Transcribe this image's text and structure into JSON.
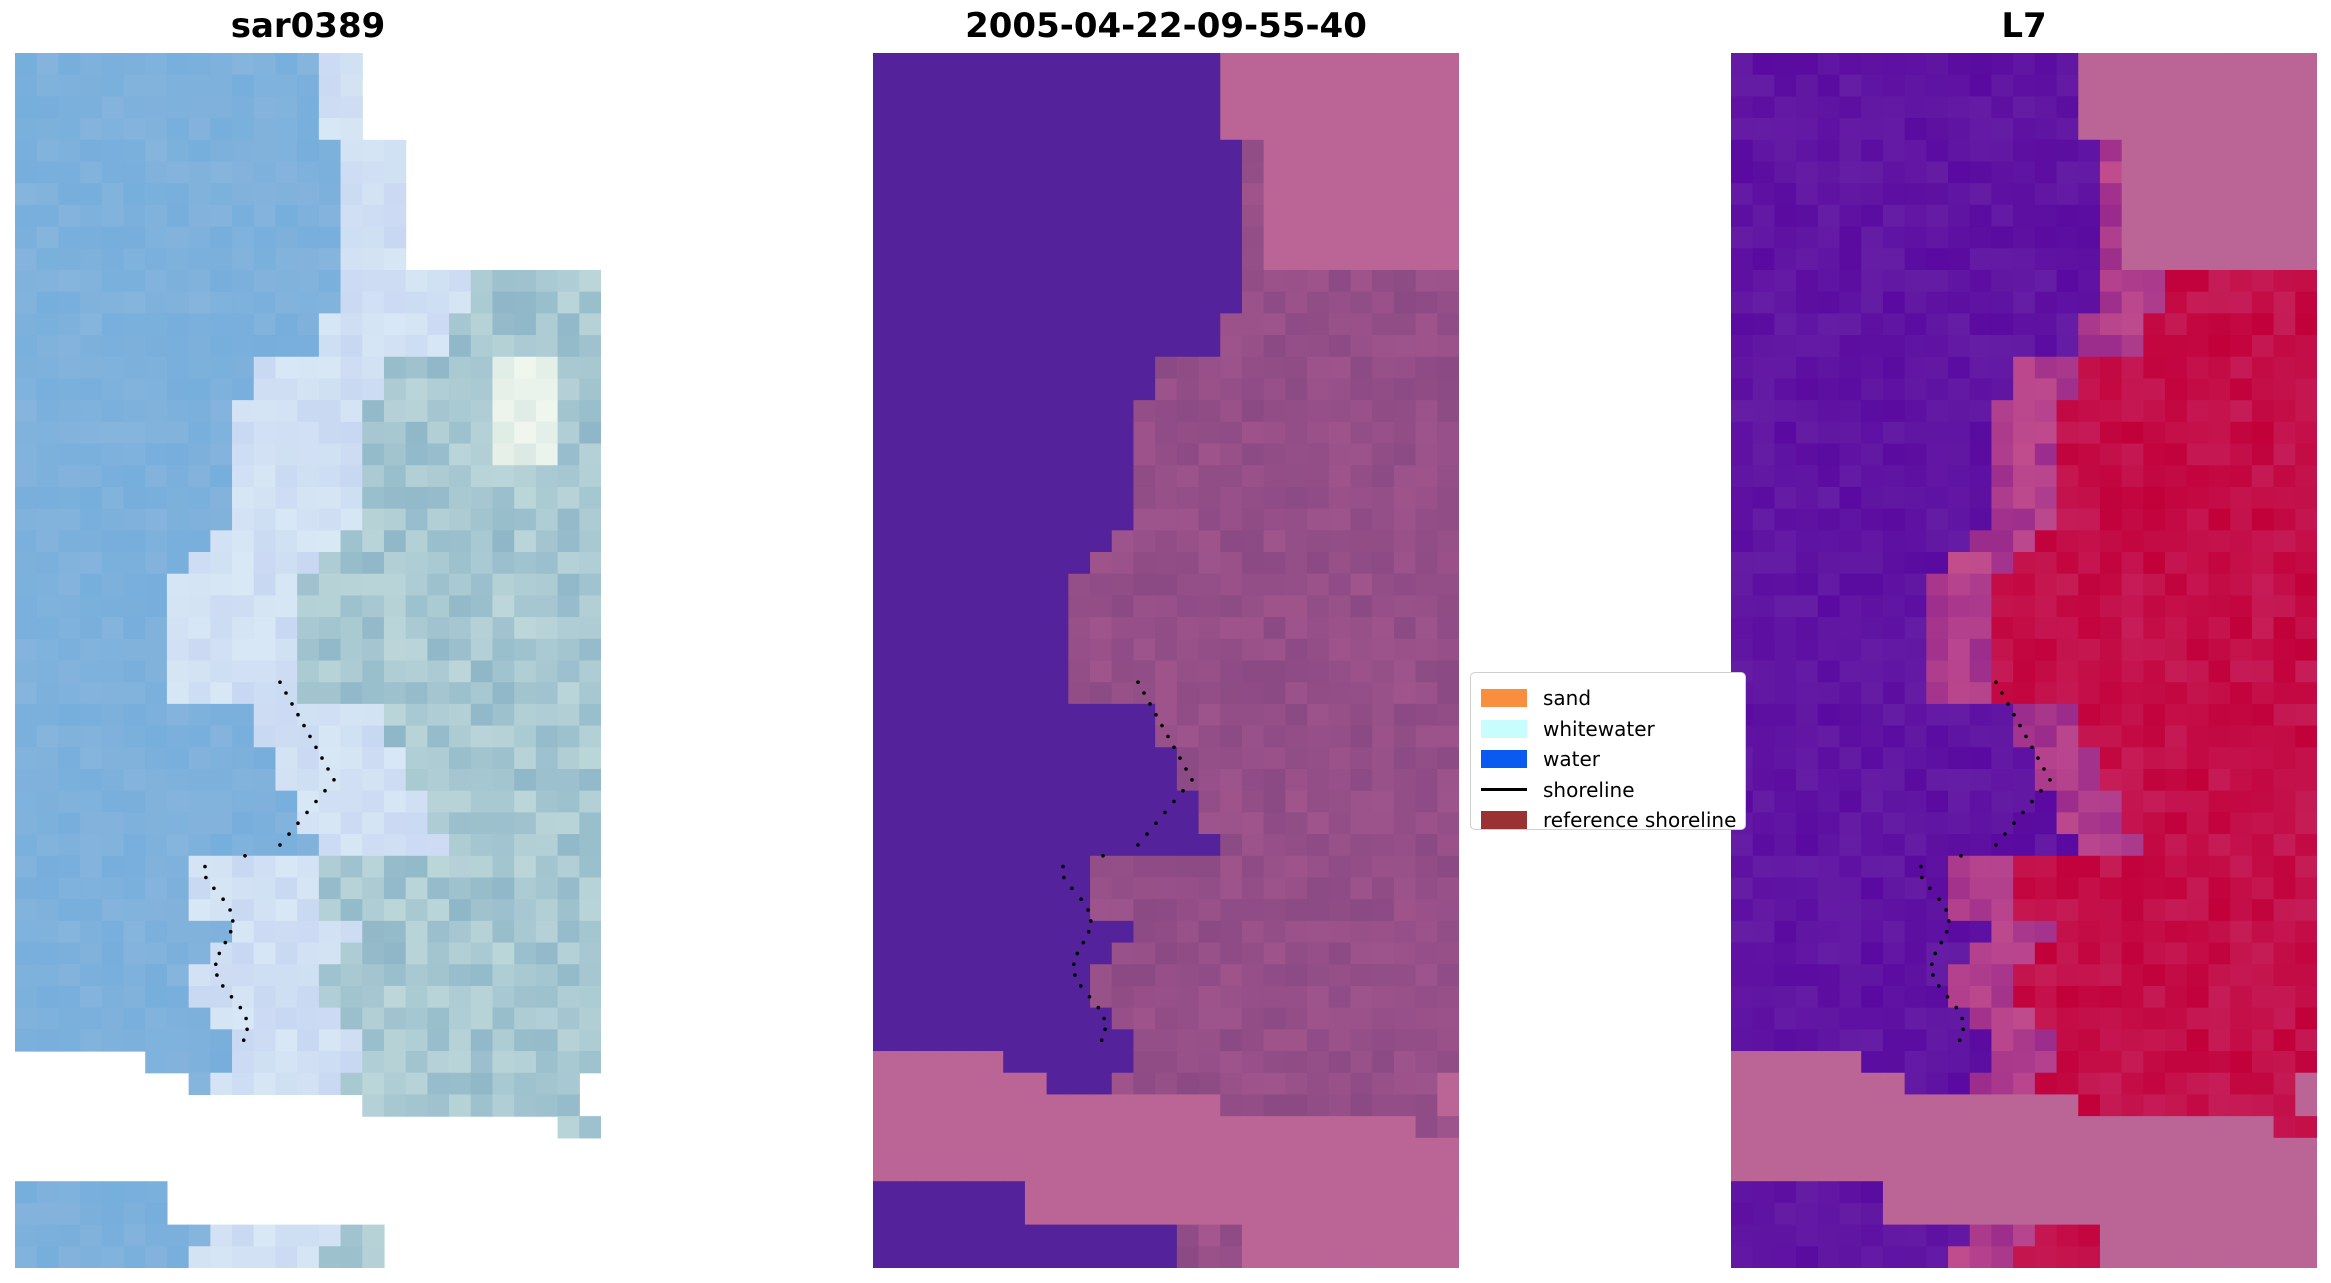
{
  "panels": [
    {
      "title": "sar0389",
      "style": "rgb"
    },
    {
      "title": "2005-04-22-09-55-40",
      "style": "classified"
    },
    {
      "title": "L7",
      "style": "index"
    }
  ],
  "legend": {
    "items": [
      {
        "label": "sand",
        "color": "#f98e3f",
        "type": "patch"
      },
      {
        "label": "whitewater",
        "color": "#c8fdfe",
        "type": "patch"
      },
      {
        "label": "water",
        "color": "#0a5af2",
        "type": "patch"
      },
      {
        "label": "shoreline",
        "color": "#000000",
        "type": "line"
      },
      {
        "label": "reference shoreline",
        "color": "#9a3234",
        "type": "patch"
      }
    ]
  },
  "colors": {
    "rgb_water": "#76aedc",
    "rgb_bright": "#d8e8f5",
    "rgb_sea": "#8fb7c8",
    "class_water": "#54229a",
    "class_nodata": "#bb6597",
    "class_land": "#8b4a84",
    "index_low": "#5a0aa0",
    "index_high": "#c2003a",
    "index_nodata": "#bb6597"
  }
}
